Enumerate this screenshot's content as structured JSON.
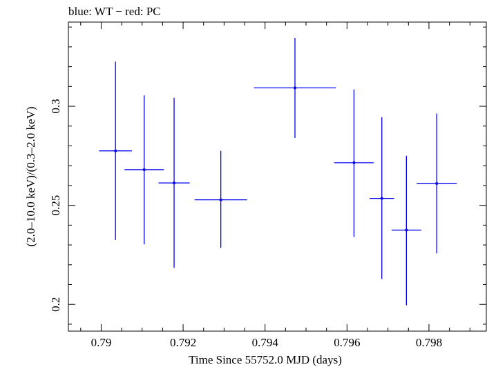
{
  "chart_data": {
    "type": "scatter",
    "title": "blue: WT − red: PC",
    "xlabel": "Time Since 55752.0 MJD (days)",
    "ylabel": "(2.0–10.0 keV)/(0.3–2.0 keV)",
    "xlim": [
      0.7892,
      0.7994
    ],
    "ylim": [
      0.1865,
      0.3425
    ],
    "x_ticks": [
      0.79,
      0.792,
      0.794,
      0.796,
      0.798
    ],
    "x_tick_labels": [
      "0.79",
      "0.792",
      "0.794",
      "0.796",
      "0.798"
    ],
    "y_ticks": [
      0.2,
      0.25,
      0.3
    ],
    "y_tick_labels": [
      "0.2",
      "0.25",
      "0.3"
    ],
    "grid": false,
    "series": [
      {
        "color": "#0000ee",
        "points": [
          {
            "x": 0.79035,
            "xerr": 0.0004,
            "y": 0.2775,
            "ylo": 0.2325,
            "yhi": 0.3225
          },
          {
            "x": 0.79105,
            "xerr": 0.00048,
            "y": 0.268,
            "ylo": 0.2303,
            "yhi": 0.3055
          },
          {
            "x": 0.79178,
            "xerr": 0.00038,
            "y": 0.2613,
            "ylo": 0.2185,
            "yhi": 0.3043
          },
          {
            "x": 0.79292,
            "xerr": 0.00064,
            "y": 0.2528,
            "ylo": 0.2285,
            "yhi": 0.2775
          },
          {
            "x": 0.79473,
            "xerr": 0.001,
            "y": 0.3093,
            "ylo": 0.284,
            "yhi": 0.3345
          },
          {
            "x": 0.79617,
            "xerr": 0.00048,
            "y": 0.2715,
            "ylo": 0.234,
            "yhi": 0.3085
          },
          {
            "x": 0.79685,
            "xerr": 0.0003,
            "y": 0.2535,
            "ylo": 0.2128,
            "yhi": 0.2945
          },
          {
            "x": 0.79745,
            "xerr": 0.00036,
            "y": 0.2375,
            "ylo": 0.1995,
            "yhi": 0.275
          },
          {
            "x": 0.79819,
            "xerr": 0.00049,
            "y": 0.261,
            "ylo": 0.2258,
            "yhi": 0.2963
          }
        ]
      }
    ]
  }
}
